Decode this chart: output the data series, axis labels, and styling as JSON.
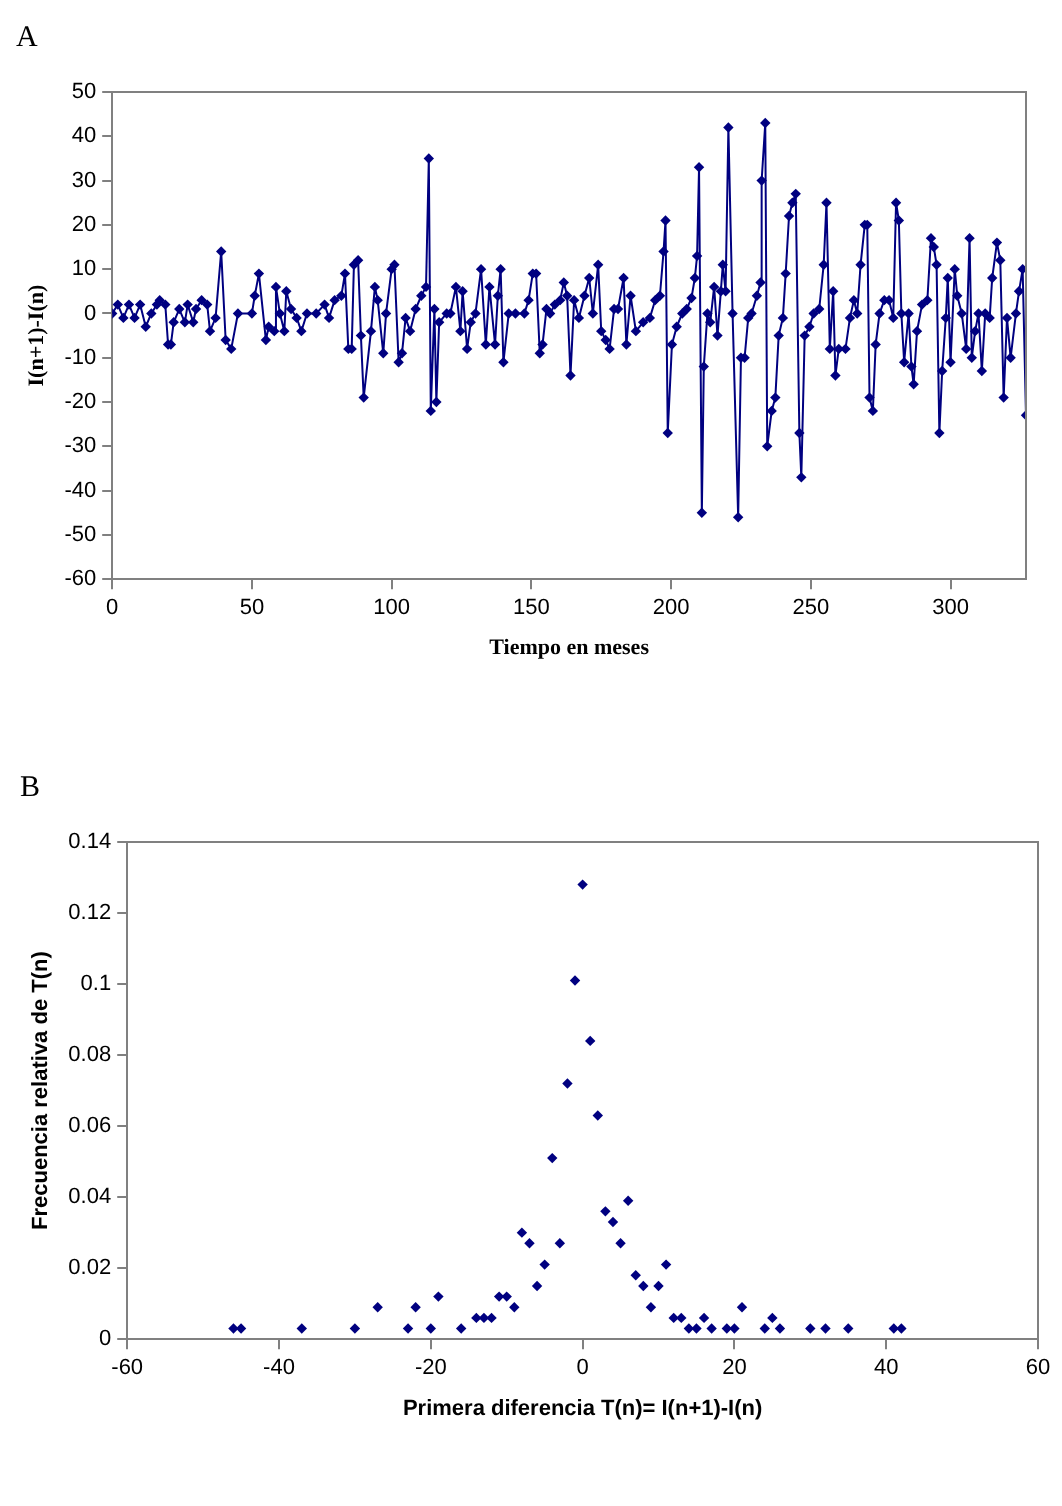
{
  "chart_data": [
    {
      "type": "line",
      "title": "A",
      "xlabel": "Tiempo en meses",
      "ylabel": "I(n+1)-I(n)",
      "xlim": [
        0,
        327
      ],
      "xticks": [
        0,
        50,
        100,
        150,
        200,
        250,
        300
      ],
      "ylim": [
        -60,
        50
      ],
      "yticks": [
        -60,
        -50,
        -40,
        -30,
        -20,
        -10,
        0,
        10,
        20,
        30,
        40,
        50
      ],
      "grid": false,
      "legend": false,
      "marker": "diamond",
      "line_style": "solid",
      "series": [
        {
          "color": "#000080",
          "x": [
            0,
            2,
            4,
            6,
            8,
            10,
            12,
            14,
            16,
            17,
            19,
            20,
            21,
            22,
            24,
            26,
            27,
            29,
            30,
            32,
            34,
            35,
            37,
            39,
            40.6,
            42.6,
            45,
            50,
            51,
            52.5,
            55,
            56,
            58,
            58.6,
            60,
            61.6,
            62.3,
            64,
            66,
            67.7,
            69.7,
            73,
            76,
            77.6,
            79.6,
            82,
            83.3,
            84.5,
            85.7,
            86.5,
            88,
            89,
            90,
            92.6,
            94,
            95,
            97,
            98,
            100,
            101,
            102.5,
            103.7,
            105,
            106.6,
            108.6,
            110.6,
            112.3,
            113.3,
            114,
            115.3,
            116,
            117,
            119.7,
            121,
            123,
            124.6,
            125.4,
            127,
            128.3,
            130,
            132,
            133.7,
            135,
            137,
            138,
            139,
            140,
            141.9,
            144.3,
            147.5,
            149,
            150.5,
            151.7,
            153,
            154,
            155.4,
            156.7,
            158.4,
            160.3,
            161.6,
            162.8,
            164,
            165.3,
            167,
            169,
            170.7,
            172,
            173.9,
            175,
            176.6,
            178,
            179.6,
            181,
            183,
            184,
            185.5,
            187.4,
            190,
            192.4,
            194.3,
            196,
            197.3,
            198,
            198.8,
            200.3,
            202,
            204,
            205.6,
            207.3,
            208.5,
            209.3,
            210,
            211,
            211.7,
            213,
            214,
            215.4,
            216.6,
            217.8,
            218.5,
            219.5,
            220.5,
            222,
            224,
            225,
            226.3,
            227.6,
            228.8,
            230.7,
            232,
            232.4,
            233.7,
            234.4,
            236,
            237.3,
            238.5,
            240,
            241,
            242.2,
            243.4,
            244.6,
            245.9,
            246.6,
            247.8,
            249.5,
            251,
            253,
            254.6,
            255.6,
            256.8,
            258,
            258.8,
            260,
            262.4,
            264,
            265.4,
            266.6,
            267.8,
            269.3,
            270.2,
            271,
            272.2,
            273.2,
            274.6,
            276.3,
            278,
            279.5,
            280.5,
            281.5,
            282.4,
            283.4,
            285,
            286,
            286.8,
            288,
            289.8,
            291.7,
            293,
            294,
            295,
            296,
            297,
            298.3,
            299,
            300,
            301.5,
            302.4,
            304,
            305.6,
            306.8,
            307.6,
            308.8,
            310,
            311.2,
            312.4,
            314,
            314.9,
            316.6,
            317.8,
            319,
            320.2,
            321.5,
            323.4,
            324.5,
            325.8,
            327
          ],
          "values": [
            0,
            2,
            -1,
            2,
            -1,
            2,
            -3,
            0,
            2,
            3,
            2,
            -7,
            -7,
            -2,
            1,
            -2,
            2,
            -2,
            1,
            3,
            2,
            -4,
            -1,
            14,
            -6,
            -8,
            0,
            0,
            4,
            9,
            -6,
            -3,
            -4,
            6,
            0,
            -4,
            5,
            1,
            -1,
            -4,
            0,
            0,
            2,
            -1,
            3,
            4,
            9,
            -8,
            -8,
            11,
            12,
            -5,
            -19,
            -4,
            6,
            3,
            -9,
            0,
            10,
            11,
            -11,
            -9,
            -1,
            -4,
            1,
            4,
            6,
            35,
            -22,
            1,
            -20,
            -2,
            0,
            0,
            6,
            -4,
            5,
            -8,
            -2,
            0,
            10,
            -7,
            6,
            -7,
            4,
            10,
            -11,
            0,
            0,
            0,
            3,
            9,
            9,
            -9,
            -7,
            1,
            0,
            2,
            3,
            7,
            4,
            -14,
            3,
            -1,
            4,
            8,
            0,
            11,
            -4,
            -6,
            -8,
            1,
            1,
            8,
            -7,
            4,
            -4,
            -2,
            -1,
            3,
            4,
            14,
            21,
            -27,
            -7,
            -3,
            0,
            1,
            3.5,
            8,
            13,
            33,
            -45,
            -12,
            0,
            -2,
            6,
            -5,
            5,
            11,
            5,
            42,
            0,
            -46,
            -10,
            -10,
            -1,
            0,
            4,
            7,
            30,
            43,
            -30,
            -22,
            -19,
            -5,
            -1,
            9,
            22,
            25,
            27,
            -27,
            -37,
            -5,
            -3,
            0,
            1,
            11,
            25,
            -8,
            5,
            -14,
            -8,
            -8,
            -1,
            3,
            0,
            11,
            20,
            20,
            -19,
            -22,
            -7,
            0,
            3,
            3,
            -1,
            25,
            21,
            0,
            -11,
            0,
            -12,
            -16,
            -4,
            2,
            3,
            17,
            15,
            11,
            -27,
            -13,
            -1,
            8,
            -11,
            10,
            4,
            0,
            -8,
            17,
            -10,
            -4,
            0,
            -13,
            0,
            -1,
            8,
            16,
            12,
            -19,
            -1,
            -10,
            0,
            5,
            10,
            -23
          ]
        }
      ]
    },
    {
      "type": "scatter",
      "title": "B",
      "xlabel": "Primera diferencia T(n)= I(n+1)-I(n)",
      "ylabel": "Frecuencia relativa de T(n)",
      "xlim": [
        -60,
        60
      ],
      "xticks": [
        -60,
        -40,
        -20,
        0,
        20,
        40,
        60
      ],
      "ylim": [
        0,
        0.14
      ],
      "yticks": [
        0,
        0.02,
        0.04,
        0.06,
        0.08,
        0.1,
        0.12,
        0.14
      ],
      "grid": false,
      "legend": false,
      "marker": "diamond",
      "series": [
        {
          "color": "#000080",
          "x": [
            -46,
            -45,
            -37,
            -30,
            -27,
            -23,
            -22,
            -20,
            -19,
            -16,
            -14,
            -13,
            -12,
            -11,
            -10,
            -9,
            -8,
            -7,
            -6,
            -5,
            -4,
            -3,
            -2,
            -1,
            0,
            1,
            2,
            3,
            4,
            5,
            6,
            7,
            8,
            9,
            10,
            11,
            12,
            13,
            14,
            15,
            16,
            17,
            19,
            20,
            21,
            24,
            25,
            26,
            30,
            32,
            35,
            41,
            42
          ],
          "values": [
            0.003,
            0.003,
            0.003,
            0.003,
            0.009,
            0.003,
            0.009,
            0.003,
            0.012,
            0.003,
            0.006,
            0.006,
            0.006,
            0.012,
            0.012,
            0.009,
            0.03,
            0.027,
            0.015,
            0.021,
            0.051,
            0.027,
            0.072,
            0.101,
            0.128,
            0.084,
            0.063,
            0.036,
            0.033,
            0.027,
            0.039,
            0.018,
            0.015,
            0.009,
            0.015,
            0.021,
            0.006,
            0.006,
            0.003,
            0.003,
            0.006,
            0.003,
            0.003,
            0.003,
            0.009,
            0.003,
            0.006,
            0.003,
            0.003,
            0.003,
            0.003,
            0.003,
            0.003
          ]
        }
      ]
    }
  ]
}
